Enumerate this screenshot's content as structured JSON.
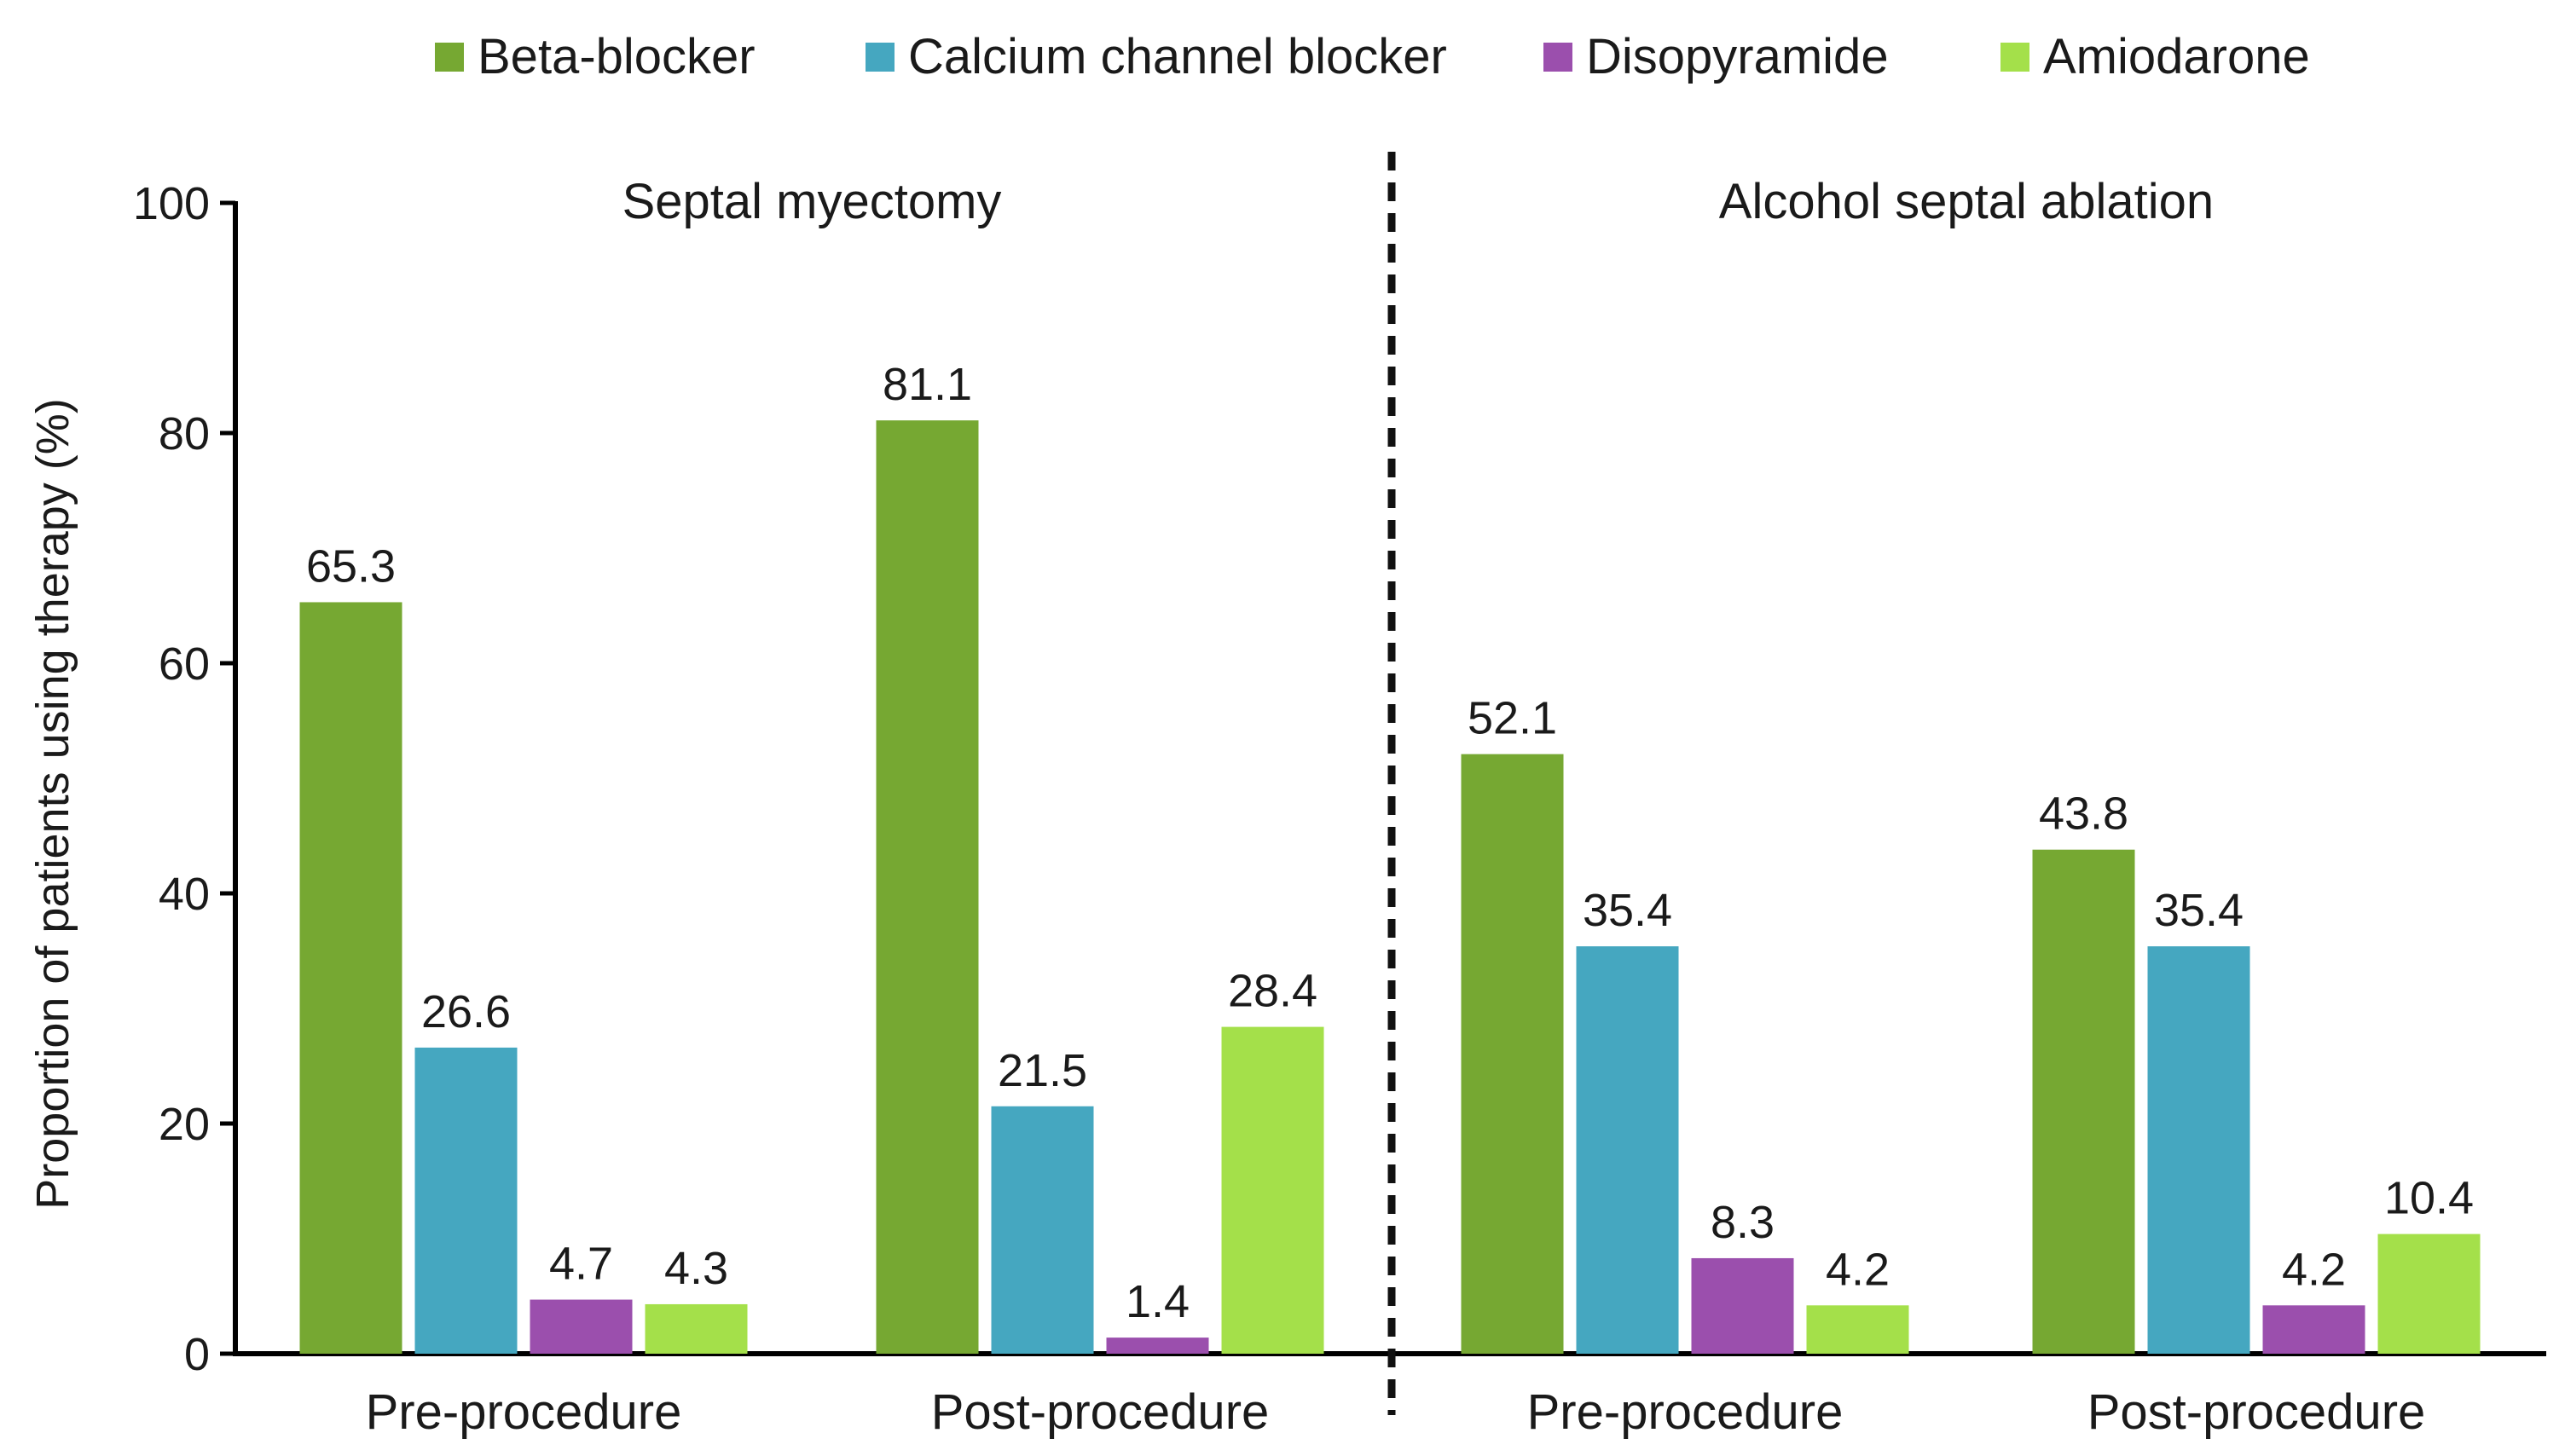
{
  "chart_data": {
    "type": "bar",
    "ylabel": "Proportion of patients using therapy (%)",
    "ylim": [
      0,
      100
    ],
    "yticks": [
      0,
      20,
      40,
      60,
      80,
      100
    ],
    "grid": false,
    "legend_position": "top",
    "series": [
      {
        "name": "Beta-blocker",
        "color": "#76a832"
      },
      {
        "name": "Calcium channel blocker",
        "color": "#45a7c0"
      },
      {
        "name": "Disopyramide",
        "color": "#9b4fad"
      },
      {
        "name": "Amiodarone",
        "color": "#a4e04a"
      }
    ],
    "panels": [
      {
        "title": "Septal myectomy",
        "groups": [
          {
            "label": "Pre-procedure",
            "values": [
              65.3,
              26.6,
              4.7,
              4.3
            ]
          },
          {
            "label": "Post-procedure",
            "values": [
              81.1,
              21.5,
              1.4,
              28.4
            ]
          }
        ]
      },
      {
        "title": "Alcohol septal ablation",
        "groups": [
          {
            "label": "Pre-procedure",
            "values": [
              52.1,
              35.4,
              8.3,
              4.2
            ]
          },
          {
            "label": "Post-procedure",
            "values": [
              43.8,
              35.4,
              4.2,
              10.4
            ]
          }
        ]
      }
    ]
  }
}
